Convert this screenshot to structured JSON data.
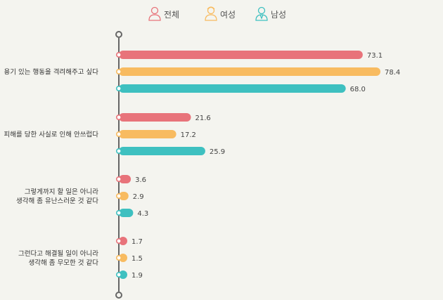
{
  "chart_data": {
    "type": "bar",
    "orientation": "horizontal",
    "categories": [
      [
        "용기 있는 행동을 격려해주고 싶다"
      ],
      [
        "피해를 당한 사실로 인해 안쓰럽다"
      ],
      [
        "그렇게까지 할 일은 아니라",
        "생각해 좀 유난스러운 것 같다"
      ],
      [
        "그런다고 해결될 일이 아니라",
        "생각해 좀 무모한 것 같다"
      ]
    ],
    "series": [
      {
        "name": "전체",
        "color": "#e8737a",
        "icon": "person-icon",
        "values": [
          73.1,
          21.6,
          3.6,
          1.7
        ]
      },
      {
        "name": "여성",
        "color": "#f8bb60",
        "icon": "woman-icon",
        "values": [
          78.4,
          17.2,
          2.9,
          1.5
        ]
      },
      {
        "name": "남성",
        "color": "#3ec0c0",
        "icon": "man-icon",
        "values": [
          68.0,
          25.9,
          4.3,
          1.9
        ]
      }
    ],
    "value_format": "one-decimal",
    "xlim": [
      0,
      80
    ],
    "legend_position": "top-center",
    "grid": false,
    "axis_color": "#666666"
  }
}
